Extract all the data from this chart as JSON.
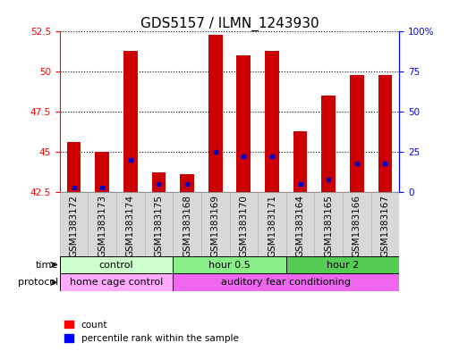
{
  "title": "GDS5157 / ILMN_1243930",
  "samples": [
    "GSM1383172",
    "GSM1383173",
    "GSM1383174",
    "GSM1383175",
    "GSM1383168",
    "GSM1383169",
    "GSM1383170",
    "GSM1383171",
    "GSM1383164",
    "GSM1383165",
    "GSM1383166",
    "GSM1383167"
  ],
  "count_values": [
    45.6,
    45.0,
    51.3,
    43.7,
    43.6,
    52.3,
    51.0,
    51.3,
    46.3,
    48.5,
    49.8,
    49.8
  ],
  "percentile_values": [
    3,
    3,
    20,
    5,
    5,
    25,
    22,
    22,
    5,
    8,
    18,
    18
  ],
  "y_min": 42.5,
  "y_max": 52.5,
  "y_ticks": [
    42.5,
    45,
    47.5,
    50,
    52.5
  ],
  "right_y_ticks": [
    0,
    25,
    50,
    75,
    100
  ],
  "right_y_labels": [
    "0",
    "25",
    "50",
    "75",
    "100%"
  ],
  "time_groups": [
    {
      "label": "control",
      "start": 0,
      "end": 4,
      "color": "#ccffcc"
    },
    {
      "label": "hour 0.5",
      "start": 4,
      "end": 8,
      "color": "#88ee88"
    },
    {
      "label": "hour 2",
      "start": 8,
      "end": 12,
      "color": "#55cc55"
    }
  ],
  "protocol_groups": [
    {
      "label": "home cage control",
      "start": 0,
      "end": 4,
      "color": "#ffaaff"
    },
    {
      "label": "auditory fear conditioning",
      "start": 4,
      "end": 12,
      "color": "#ee66ee"
    }
  ],
  "bar_color": "#cc0000",
  "dot_color": "#0000cc",
  "bar_width": 0.5,
  "background_color": "#ffffff",
  "plot_bg_color": "#ffffff",
  "title_fontsize": 11,
  "tick_fontsize": 7.5,
  "legend_fontsize": 7.5
}
